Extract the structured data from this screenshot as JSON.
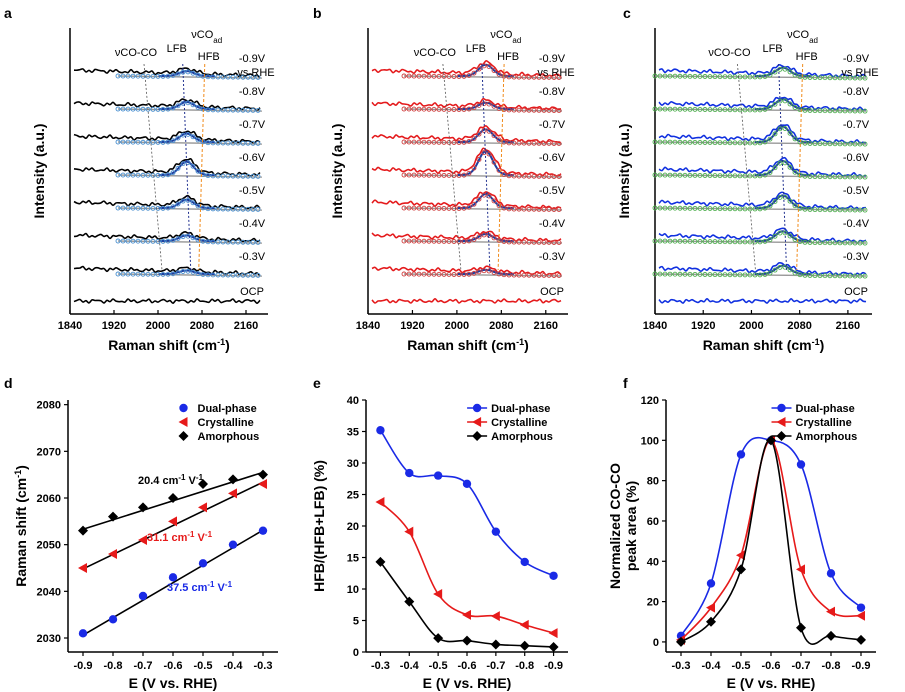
{
  "figure": {
    "panel_labels": [
      "a",
      "b",
      "c",
      "d",
      "e",
      "f"
    ]
  },
  "chart_data": [
    {
      "panel": "a",
      "type": "line",
      "xlabel": "Raman shift (cm",
      "xlabel_sup": "-1",
      "xlabel_end": ")",
      "ylabel": "Intensity (a.u.)",
      "xlim": [
        1840,
        2200
      ],
      "xticks": [
        "1840",
        "1920",
        "2000",
        "2080",
        "2160"
      ],
      "spectra": [
        "-0.9V",
        "-0.8V",
        "-0.7V",
        "-0.6V",
        "-0.5V",
        "-0.4V",
        "-0.3V",
        "OCP"
      ],
      "vs_label": "vs RHE",
      "peak_labels": {
        "coco": "νCO-CO",
        "lfb": "LFB",
        "hfb": "HFB",
        "vco": "νCO",
        "vco_sub": "ad"
      },
      "peak_heights": [
        0.35,
        0.5,
        0.6,
        0.95,
        0.6,
        0.4,
        0.25,
        0
      ],
      "colors": {
        "trace": "#000000",
        "fit": "#1f3f9f",
        "marker": "#4a90d0",
        "base": "#999999"
      }
    },
    {
      "panel": "b",
      "type": "line",
      "xlabel": "Raman shift (cm",
      "xlabel_sup": "-1",
      "xlabel_end": ")",
      "ylabel": "Intensity (a.u.)",
      "xlim": [
        1840,
        2200
      ],
      "xticks": [
        "1840",
        "1920",
        "2000",
        "2080",
        "2160"
      ],
      "spectra": [
        "-0.9V",
        "-0.8V",
        "-0.7V",
        "-0.6V",
        "-0.5V",
        "-0.4V",
        "-0.3V",
        "OCP"
      ],
      "vs_label": "vs RHE",
      "peak_labels": {
        "coco": "νCO-CO",
        "lfb": "LFB",
        "hfb": "HFB",
        "vco": "νCO",
        "vco_sub": "ad"
      },
      "peak_heights": [
        0.8,
        0.45,
        0.9,
        1.7,
        1.0,
        0.5,
        0.3,
        0
      ],
      "colors": {
        "trace": "#e41a1c",
        "fit": "#1f3f9f",
        "marker": "#d04040",
        "base": "#999999"
      }
    },
    {
      "panel": "c",
      "type": "line",
      "xlabel": "Raman shift (cm",
      "xlabel_sup": "-1",
      "xlabel_end": ")",
      "ylabel": "Intensity (a.u.)",
      "xlim": [
        1840,
        2200
      ],
      "xticks": [
        "1840",
        "1920",
        "2000",
        "2080",
        "2160"
      ],
      "spectra": [
        "-0.9V",
        "-0.8V",
        "-0.7V",
        "-0.6V",
        "-0.5V",
        "-0.4V",
        "-0.3V",
        "OCP"
      ],
      "vs_label": "vs RHE",
      "peak_labels": {
        "coco": "νCO-CO",
        "lfb": "LFB",
        "hfb": "HFB",
        "vco": "νCO",
        "vco_sub": "ad"
      },
      "peak_heights": [
        0.6,
        0.7,
        1.1,
        1.0,
        0.9,
        0.7,
        0.6,
        0
      ],
      "colors": {
        "trace": "#1030e0",
        "fit": "#1f3f9f",
        "marker": "#50b050",
        "base": "#999999"
      }
    },
    {
      "panel": "d",
      "type": "scatter",
      "xlabel": "E (V vs. RHE)",
      "ylabel": "Raman shift (cm",
      "ylabel_sup": "-1",
      "ylabel_end": ")",
      "x": [
        -0.9,
        -0.8,
        -0.7,
        -0.6,
        -0.5,
        -0.4,
        -0.3
      ],
      "xlim": [
        -0.95,
        -0.25
      ],
      "ylim": [
        2027,
        2081
      ],
      "xticks": [
        -0.9,
        -0.8,
        -0.7,
        -0.6,
        -0.5,
        -0.4,
        -0.3
      ],
      "xtick_labels": [
        "-0.9",
        "-0.8",
        "-0.7",
        "-0.6",
        "-0.5",
        "-0.4",
        "-0.3"
      ],
      "yticks": [
        2030,
        2040,
        2050,
        2060,
        2070,
        2080
      ],
      "ytick_labels": [
        "2030",
        "2040",
        "2050",
        "2060",
        "2070",
        "2080"
      ],
      "series": [
        {
          "name": "Dual-phase",
          "color": "#1a2ae6",
          "marker": "circle",
          "values": [
            2031,
            2034,
            2039,
            2043,
            2046,
            2050,
            2053
          ],
          "fit": [
            2030.6,
            2053.1
          ],
          "slope_label": "37.5 cm",
          "slope_sup": "-1",
          "slope_tail": " V",
          "slope_sup2": "-1"
        },
        {
          "name": "Crystalline",
          "color": "#e61a1a",
          "marker": "triangle-left",
          "values": [
            2045,
            2048,
            2051,
            2055,
            2058,
            2061,
            2063
          ],
          "fit": [
            2044.8,
            2063.4
          ],
          "slope_label": "31.1 cm",
          "slope_sup": "-1",
          "slope_tail": " V",
          "slope_sup2": "-1"
        },
        {
          "name": "Amorphous",
          "color": "#000000",
          "marker": "diamond",
          "values": [
            2053,
            2056,
            2058,
            2060,
            2063,
            2064,
            2065
          ],
          "fit": [
            2053.3,
            2065.5
          ],
          "slope_label": "20.4 cm",
          "slope_sup": "-1",
          "slope_tail": " V",
          "slope_sup2": "-1"
        }
      ],
      "legend": "top-right"
    },
    {
      "panel": "e",
      "type": "line",
      "xlabel": "E (V vs. RHE)",
      "ylabel": "HFB/(HFB+LFB)  (%)",
      "x": [
        -0.3,
        -0.4,
        -0.5,
        -0.6,
        -0.7,
        -0.8,
        -0.9
      ],
      "xlim": [
        -0.25,
        -0.95
      ],
      "ylim": [
        0,
        40
      ],
      "xticks": [
        -0.3,
        -0.4,
        -0.5,
        -0.6,
        -0.7,
        -0.8,
        -0.9
      ],
      "xtick_labels": [
        "-0.3",
        "-0.4",
        "-0.5",
        "-0.6",
        "-0.7",
        "-0.8",
        "-0.9"
      ],
      "yticks": [
        0,
        5,
        10,
        15,
        20,
        25,
        30,
        35,
        40
      ],
      "ytick_labels": [
        "0",
        "5",
        "10",
        "15",
        "20",
        "25",
        "30",
        "35",
        "40"
      ],
      "series": [
        {
          "name": "Dual-phase",
          "color": "#1a2ae6",
          "marker": "circle",
          "values": [
            35.2,
            28.4,
            28.0,
            26.7,
            19.1,
            14.3,
            12.1
          ]
        },
        {
          "name": "Crystalline",
          "color": "#e61a1a",
          "marker": "triangle-left",
          "values": [
            23.8,
            19.1,
            9.2,
            5.9,
            5.7,
            4.3,
            3.0
          ]
        },
        {
          "name": "Amorphous",
          "color": "#000000",
          "marker": "diamond",
          "values": [
            14.3,
            8.0,
            2.2,
            1.8,
            1.2,
            1.0,
            0.8
          ]
        }
      ],
      "legend": "top-right"
    },
    {
      "panel": "f",
      "type": "line",
      "xlabel": "E (V vs. RHE)",
      "ylabel_line1": "Normalized CO-CO",
      "ylabel_line2": "peak area (%)",
      "x": [
        -0.3,
        -0.4,
        -0.5,
        -0.6,
        -0.7,
        -0.8,
        -0.9
      ],
      "xlim": [
        -0.25,
        -0.95
      ],
      "ylim": [
        -5,
        120
      ],
      "xticks": [
        -0.3,
        -0.4,
        -0.5,
        -0.6,
        -0.7,
        -0.8,
        -0.9
      ],
      "xtick_labels": [
        "-0.3",
        "-0.4",
        "-0.5",
        "-0.6",
        "-0.7",
        "-0.8",
        "-0.9"
      ],
      "yticks": [
        0,
        20,
        40,
        60,
        80,
        100,
        120
      ],
      "ytick_labels": [
        "0",
        "20",
        "40",
        "60",
        "80",
        "100",
        "120"
      ],
      "series": [
        {
          "name": "Dual-phase",
          "color": "#1a2ae6",
          "marker": "circle",
          "values": [
            3,
            29,
            93,
            100,
            88,
            34,
            17
          ]
        },
        {
          "name": "Crystalline",
          "color": "#e61a1a",
          "marker": "triangle-left",
          "values": [
            1,
            17,
            43,
            100,
            36,
            15,
            13
          ]
        },
        {
          "name": "Amorphous",
          "color": "#000000",
          "marker": "diamond",
          "values": [
            0,
            10,
            36,
            100,
            7,
            3,
            1
          ]
        }
      ],
      "legend": "top-right"
    }
  ]
}
